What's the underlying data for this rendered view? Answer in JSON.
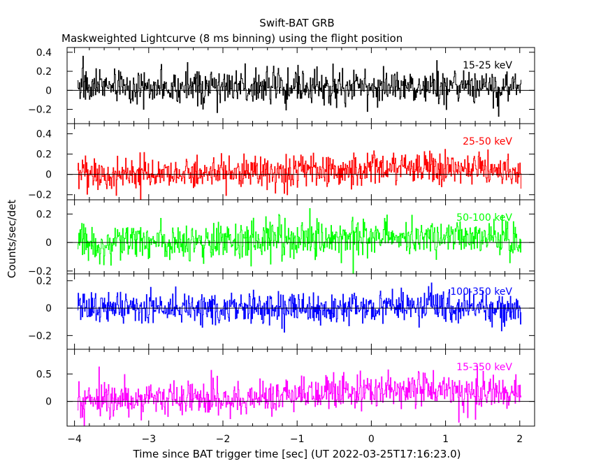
{
  "chart_data": {
    "type": "line",
    "title": "Swift-BAT GRB",
    "subtitle": "Maskweighted Lightcurve (8 ms binning) using the flight position",
    "xlabel": "Time since BAT trigger time [sec] (UT 2022-03-25T17:16:23.0)",
    "ylabel": "Counts/sec/det",
    "xlim": [
      -4.1,
      2.2
    ],
    "x_ticks": [
      -4,
      -3,
      -2,
      -1,
      0,
      1,
      2
    ],
    "x_tick_labels": [
      "−4",
      "−3",
      "−2",
      "−1",
      "0",
      "1",
      "2"
    ],
    "x_range_data": [
      -3.96,
      2.02
    ],
    "bin_width_sec": 0.008,
    "grid": false,
    "panels": [
      {
        "name": "15-25 keV",
        "color": "#000000",
        "ylim": [
          -0.35,
          0.45
        ],
        "y_ticks": [
          -0.2,
          0,
          0.2,
          0.4
        ],
        "y_tick_labels": [
          "−0.2",
          "0",
          "0.2",
          "0.4"
        ],
        "mean": 0.04,
        "noise_sigma": 0.09,
        "trend": [
          [
            -4,
            0.04
          ],
          [
            2,
            0.04
          ]
        ]
      },
      {
        "name": "25-50 keV",
        "color": "#ff0000",
        "ylim": [
          -0.25,
          0.5
        ],
        "y_ticks": [
          -0.2,
          0,
          0.2,
          0.4
        ],
        "y_tick_labels": [
          "−0.2",
          "0",
          "0.2",
          "0.4"
        ],
        "mean": 0.02,
        "noise_sigma": 0.08,
        "trend": [
          [
            -4,
            0.0
          ],
          [
            -1,
            0.03
          ],
          [
            0.5,
            0.08
          ],
          [
            2,
            0.05
          ]
        ]
      },
      {
        "name": "50-100 keV",
        "color": "#00ff00",
        "ylim": [
          -0.22,
          0.3
        ],
        "y_ticks": [
          -0.2,
          0,
          0.2
        ],
        "y_tick_labels": [
          "−0.2",
          "0",
          "0.2"
        ],
        "mean": 0.01,
        "noise_sigma": 0.065,
        "trend": [
          [
            -4,
            0.0
          ],
          [
            -1,
            0.01
          ],
          [
            0.5,
            0.04
          ],
          [
            2,
            0.02
          ]
        ]
      },
      {
        "name": "100-350 keV",
        "color": "#0000ff",
        "ylim": [
          -0.3,
          0.25
        ],
        "y_ticks": [
          -0.2,
          0,
          0.2
        ],
        "y_tick_labels": [
          "−0.2",
          "0",
          "0.2"
        ],
        "mean": 0.0,
        "noise_sigma": 0.06,
        "trend": [
          [
            -4,
            0.0
          ],
          [
            2,
            0.0
          ]
        ]
      },
      {
        "name": "15-350 keV",
        "color": "#ff00ff",
        "ylim": [
          -0.45,
          0.95
        ],
        "y_ticks": [
          0,
          0.5
        ],
        "y_tick_labels": [
          "0",
          "0.5"
        ],
        "mean": 0.05,
        "noise_sigma": 0.16,
        "trend": [
          [
            -4,
            0.02
          ],
          [
            -1,
            0.08
          ],
          [
            0.3,
            0.25
          ],
          [
            2,
            0.12
          ]
        ]
      }
    ]
  }
}
